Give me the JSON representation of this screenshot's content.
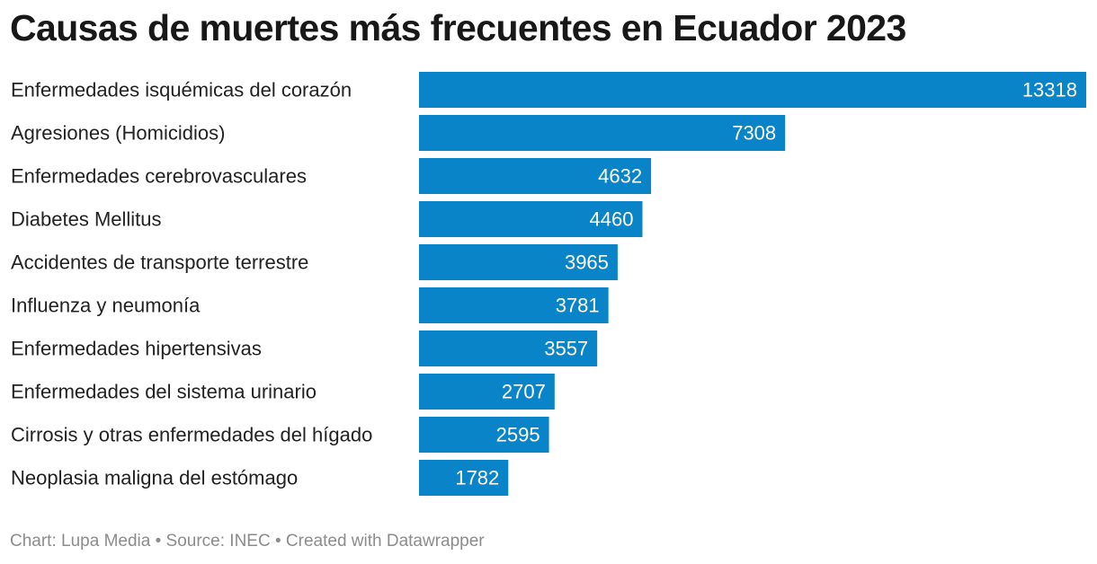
{
  "title": "Causas de muertes más frecuentes en Ecuador 2023",
  "footer": {
    "chart": "Chart: Lupa Media",
    "separator": " • ",
    "source": "Source: INEC",
    "created": "Created with Datawrapper"
  },
  "colors": {
    "bar": "#0a84c8",
    "value_text": "#ffffff",
    "label_text": "#222222",
    "footer_text": "#8c8c8c"
  },
  "chart_data": {
    "type": "bar",
    "orientation": "horizontal",
    "title": "Causas de muertes más frecuentes en Ecuador 2023",
    "categories": [
      "Enfermedades isquémicas del corazón",
      "Agresiones (Homicidios)",
      "Enfermedades cerebrovasculares",
      "Diabetes Mellitus",
      "Accidentes de transporte terrestre",
      "Influenza y neumonía",
      "Enfermedades hipertensivas",
      "Enfermedades del sistema urinario",
      "Cirrosis y otras enfermedades del hígado",
      "Neoplasia maligna del estómago"
    ],
    "values": [
      13318,
      7308,
      4632,
      4460,
      3965,
      3781,
      3557,
      2707,
      2595,
      1782
    ],
    "xlim": [
      0,
      13318
    ],
    "xlabel": "",
    "ylabel": "",
    "grid": false,
    "legend": "none",
    "value_labels": "inside-end"
  }
}
